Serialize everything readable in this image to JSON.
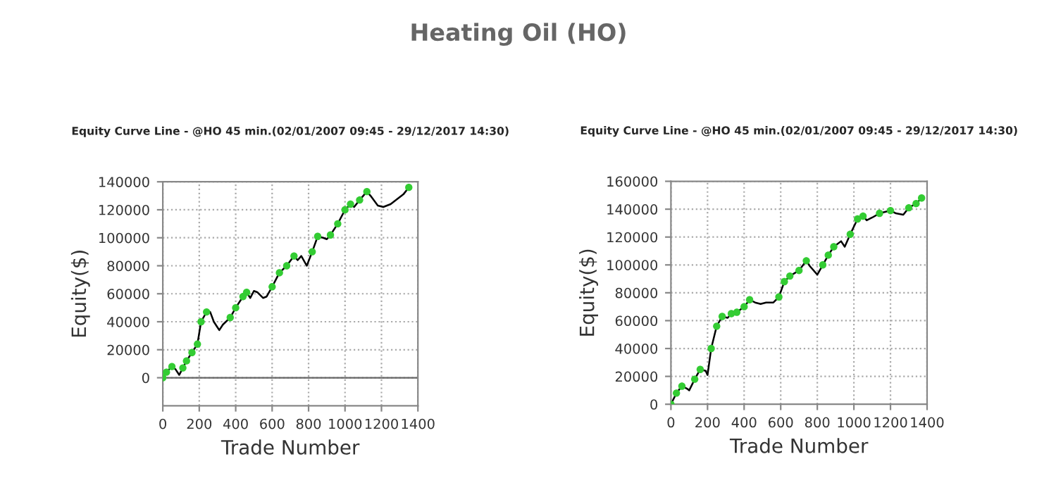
{
  "chart_data": [
    {
      "type": "line",
      "title": "Equity Curve Line - @HO 45 min.(02/01/2007 09:45 - 29/12/2017 14:30)",
      "xlabel": "Trade Number",
      "ylabel": "Equity($)",
      "annotations": [
        "Heating Oil (HO)"
      ],
      "xlim": [
        0,
        1400
      ],
      "xticks": [
        0,
        200,
        400,
        600,
        800,
        1000,
        1200,
        1400
      ],
      "ylim": [
        -20000,
        140000
      ],
      "yticks": [
        0,
        20000,
        40000,
        60000,
        80000,
        100000,
        120000,
        140000
      ],
      "grid": true,
      "series": [
        {
          "color": "#000000",
          "marker": "none",
          "x": [
            0,
            20,
            50,
            70,
            90,
            110,
            130,
            160,
            190,
            210,
            240,
            260,
            280,
            300,
            310,
            330,
            370,
            400,
            440,
            460,
            480,
            500,
            520,
            550,
            570,
            600,
            640,
            680,
            720,
            740,
            760,
            790,
            820,
            850,
            880,
            900,
            920,
            960,
            1000,
            1030,
            1050,
            1080,
            1120,
            1140,
            1180,
            1210,
            1250,
            1280,
            1320,
            1350
          ],
          "values": [
            0,
            4000,
            8000,
            6000,
            2000,
            7000,
            12000,
            18000,
            24000,
            40000,
            47000,
            47000,
            40000,
            36000,
            34000,
            38000,
            43000,
            50000,
            58000,
            61000,
            57000,
            62000,
            61000,
            57000,
            58000,
            65000,
            75000,
            80000,
            87000,
            84000,
            87000,
            80000,
            90000,
            101000,
            100000,
            99000,
            102000,
            110000,
            120000,
            124000,
            122000,
            127000,
            133000,
            130000,
            123000,
            122000,
            124000,
            127000,
            131000,
            136000
          ]
        },
        {
          "type": "scatter",
          "color": "#33cc33",
          "marker": "circle",
          "x": [
            0,
            20,
            50,
            110,
            130,
            160,
            190,
            210,
            240,
            370,
            400,
            440,
            460,
            600,
            640,
            680,
            720,
            820,
            850,
            920,
            960,
            1000,
            1030,
            1080,
            1120,
            1350
          ],
          "values": [
            0,
            4000,
            8000,
            7000,
            12000,
            18000,
            24000,
            40000,
            47000,
            43000,
            50000,
            58000,
            61000,
            65000,
            75000,
            80000,
            87000,
            90000,
            101000,
            102000,
            110000,
            120000,
            124000,
            127000,
            133000,
            136000
          ]
        }
      ]
    },
    {
      "type": "line",
      "title": "Equity Curve Line - @HO 45 min.(02/01/2007 09:45 - 29/12/2017 14:30)",
      "xlabel": "Trade Number",
      "ylabel": "Equity($)",
      "xlim": [
        0,
        1400
      ],
      "xticks": [
        0,
        200,
        400,
        600,
        800,
        1000,
        1200,
        1400
      ],
      "ylim": [
        0,
        160000
      ],
      "yticks": [
        0,
        20000,
        40000,
        60000,
        80000,
        100000,
        120000,
        140000,
        160000
      ],
      "grid": true,
      "series": [
        {
          "color": "#000000",
          "marker": "none",
          "x": [
            0,
            30,
            60,
            90,
            100,
            130,
            160,
            190,
            200,
            220,
            250,
            280,
            310,
            330,
            360,
            400,
            430,
            460,
            490,
            520,
            560,
            590,
            620,
            650,
            700,
            740,
            760,
            800,
            830,
            860,
            890,
            930,
            950,
            980,
            1020,
            1050,
            1070,
            1100,
            1140,
            1200,
            1230,
            1270,
            1300,
            1340,
            1370
          ],
          "values": [
            0,
            8000,
            13000,
            11000,
            10000,
            18000,
            25000,
            24000,
            21000,
            40000,
            56000,
            63000,
            62000,
            65000,
            66000,
            70000,
            75000,
            73000,
            72000,
            73000,
            73000,
            77000,
            88000,
            92000,
            96000,
            103000,
            99000,
            93000,
            100000,
            107000,
            113000,
            117000,
            113000,
            122000,
            133000,
            135000,
            132000,
            134000,
            137000,
            139000,
            137000,
            136000,
            141000,
            144000,
            148000
          ]
        },
        {
          "type": "scatter",
          "color": "#33cc33",
          "marker": "circle",
          "x": [
            0,
            30,
            60,
            130,
            160,
            220,
            250,
            280,
            330,
            360,
            400,
            430,
            590,
            620,
            650,
            700,
            740,
            830,
            860,
            890,
            980,
            1020,
            1050,
            1140,
            1200,
            1300,
            1340,
            1370
          ],
          "values": [
            0,
            8000,
            13000,
            18000,
            25000,
            40000,
            56000,
            63000,
            65000,
            66000,
            70000,
            75000,
            77000,
            88000,
            92000,
            96000,
            103000,
            100000,
            107000,
            113000,
            122000,
            133000,
            135000,
            137000,
            139000,
            141000,
            144000,
            148000
          ]
        }
      ]
    }
  ]
}
